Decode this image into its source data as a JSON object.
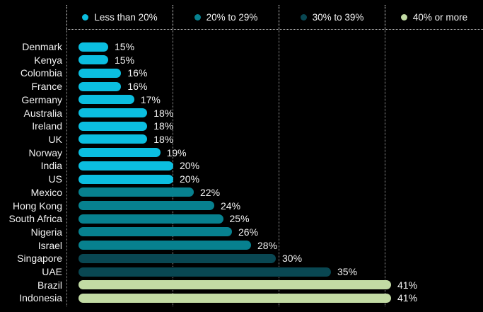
{
  "colors": {
    "background": "#000000",
    "text": "#f2f2f2",
    "grid": "#ffffff",
    "cyan": "#0BBEE0",
    "teal": "#07818F",
    "dark_teal": "#094752",
    "green": "#C2DBA4"
  },
  "legend": {
    "items": [
      {
        "label": "Less than 20%",
        "color_key": "cyan"
      },
      {
        "label": "20% to 29%",
        "color_key": "teal"
      },
      {
        "label": "30% to 39%",
        "color_key": "dark_teal"
      },
      {
        "label": "40% or more",
        "color_key": "green"
      }
    ]
  },
  "chart_data": {
    "type": "bar",
    "orientation": "horizontal",
    "title": "",
    "legend_position": "top",
    "grid": true,
    "xlim": [
      10,
      42
    ],
    "gridline_values": [
      10,
      20,
      30,
      40
    ],
    "categories": [
      "Denmark",
      "Kenya",
      "Colombia",
      "France",
      "Germany",
      "Australia",
      "Ireland",
      "UK",
      "Norway",
      "India",
      "US",
      "Mexico",
      "Hong Kong",
      "South Africa",
      "Nigeria",
      "Israel",
      "Singapore",
      "UAE",
      "Brazil",
      "Indonesia"
    ],
    "values": [
      15,
      15,
      16,
      16,
      17,
      18,
      18,
      18,
      19,
      20,
      20,
      22,
      24,
      25,
      26,
      28,
      30,
      35,
      41,
      41
    ],
    "value_labels": [
      "15%",
      "15%",
      "16%",
      "16%",
      "17%",
      "18%",
      "18%",
      "18%",
      "19%",
      "20%",
      "20%",
      "22%",
      "24%",
      "25%",
      "26%",
      "28%",
      "30%",
      "35%",
      "41%",
      "41%"
    ],
    "bar_color_keys": [
      "cyan",
      "cyan",
      "cyan",
      "cyan",
      "cyan",
      "cyan",
      "cyan",
      "cyan",
      "cyan",
      "cyan",
      "cyan",
      "teal",
      "teal",
      "teal",
      "teal",
      "teal",
      "dark_teal",
      "dark_teal",
      "green",
      "green"
    ],
    "legend": [
      "Less than 20%",
      "20% to 29%",
      "30% to 39%",
      "40% or more"
    ]
  }
}
